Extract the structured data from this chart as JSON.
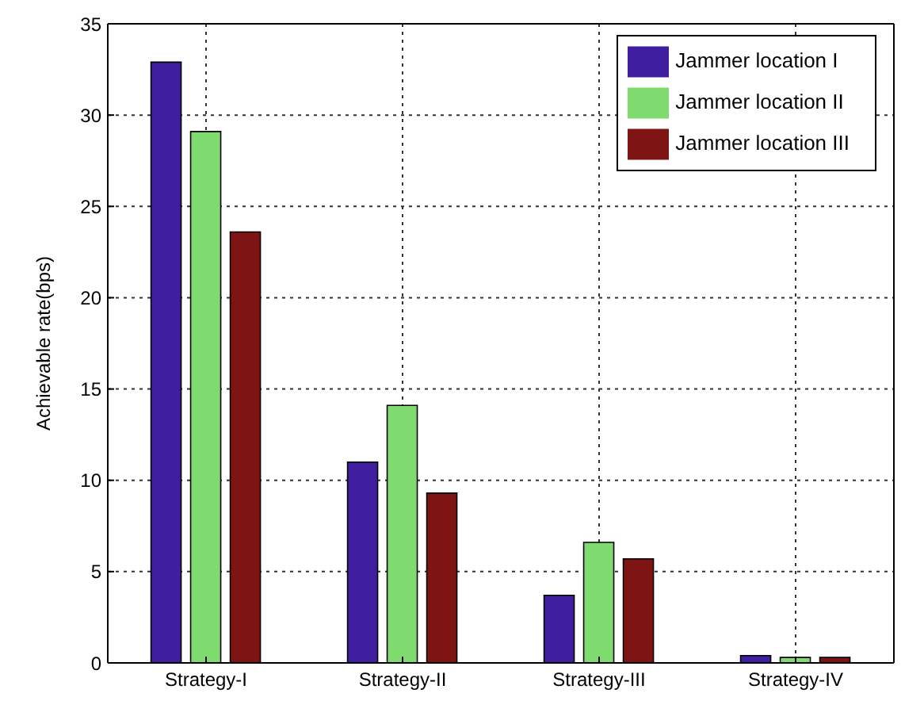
{
  "chart_data": {
    "type": "bar",
    "ylabel": "Achievable rate(bps)",
    "categories": [
      "Strategy-I",
      "Strategy-II",
      "Strategy-III",
      "Strategy-IV"
    ],
    "series": [
      {
        "name": "Jammer location I",
        "color": "#3f1f9f",
        "values": [
          32.9,
          11,
          3.7,
          0.4
        ]
      },
      {
        "name": "Jammer location II",
        "color": "#7fdb6f",
        "values": [
          29.1,
          14.1,
          6.6,
          0.3
        ]
      },
      {
        "name": "Jammer location III",
        "color": "#7f1414",
        "values": [
          23.6,
          9.3,
          5.7,
          0.3
        ]
      }
    ],
    "ylim": [
      0,
      35
    ],
    "yticks": [
      0,
      5,
      10,
      15,
      20,
      25,
      30,
      35
    ],
    "grid": true,
    "legend": "top right"
  }
}
